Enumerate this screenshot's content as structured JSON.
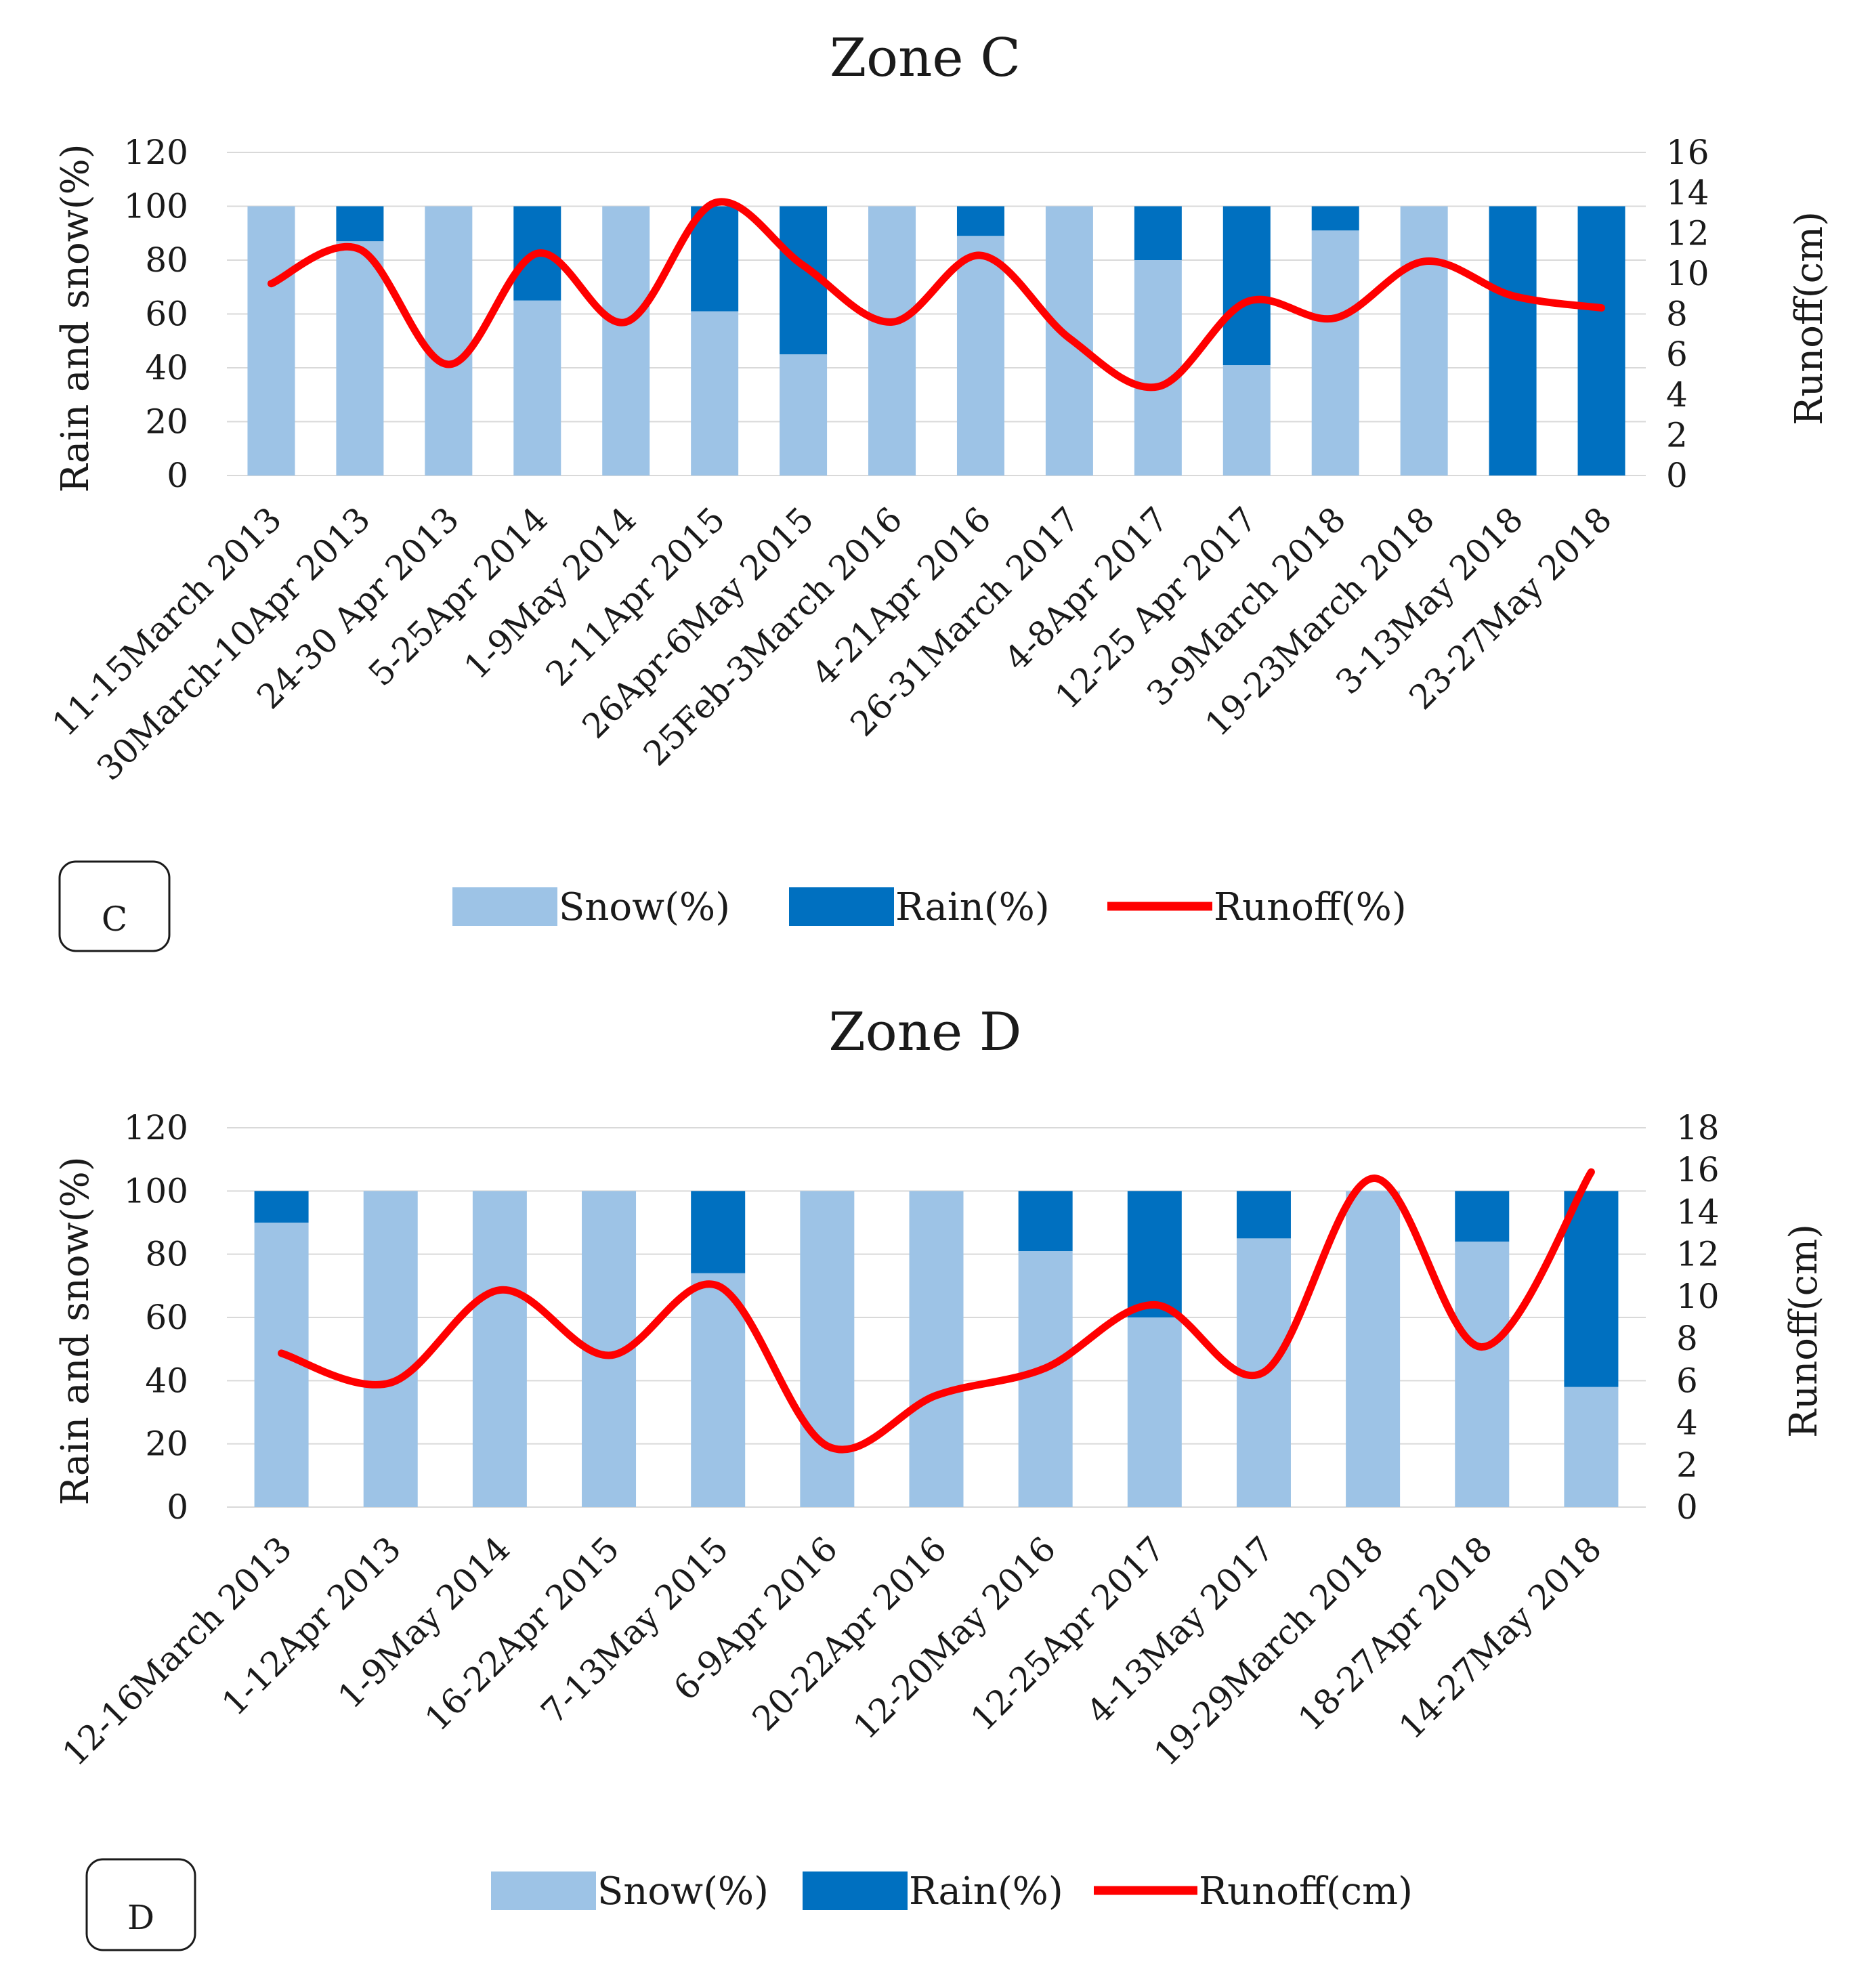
{
  "chart_data": [
    {
      "type": "bar",
      "stacked": true,
      "title": "Zone C",
      "panel_label": "C",
      "ylabel": "Rain and snow(%)",
      "y2label": "Runoff(cm)",
      "ylim": [
        0,
        120
      ],
      "yticks": [
        0,
        20,
        40,
        60,
        80,
        100,
        120
      ],
      "y2lim": [
        0,
        16
      ],
      "y2ticks": [
        0,
        2,
        4,
        6,
        8,
        10,
        12,
        14,
        16
      ],
      "categories": [
        "11-15March 2013",
        "30March-10Apr 2013",
        "24-30 Apr 2013",
        "5-25Apr 2014",
        "1-9May 2014",
        "2-11Apr 2015",
        "26Apr-6May 2015",
        "25Feb-3March 2016",
        "4-21Apr 2016",
        "26-31March 2017",
        "4-8Apr 2017",
        "12-25 Apr 2017",
        "3-9March 2018",
        "19-23March 2018",
        "3-13May 2018",
        "23-27May 2018"
      ],
      "series": [
        {
          "name": "Snow(%)",
          "kind": "bar",
          "axis": "left",
          "color": "#9dc3e6",
          "values": [
            100,
            87,
            100,
            65,
            100,
            61,
            45,
            100,
            89,
            100,
            80,
            41,
            91,
            100,
            0,
            0
          ]
        },
        {
          "name": "Rain(%)",
          "kind": "bar",
          "axis": "left",
          "color": "#0070c0",
          "values": [
            0,
            13,
            0,
            35,
            0,
            39,
            55,
            0,
            11,
            0,
            20,
            59,
            9,
            0,
            100,
            100
          ]
        },
        {
          "name": "Runoff(%)",
          "kind": "line",
          "axis": "right",
          "color": "#ff0000",
          "values": [
            9.5,
            11.2,
            5.5,
            11.0,
            7.6,
            13.5,
            10.4,
            7.6,
            10.9,
            6.8,
            4.4,
            8.6,
            7.8,
            10.6,
            8.9,
            8.3
          ]
        }
      ],
      "legend": [
        "Snow(%)",
        "Rain(%)",
        "Runoff(%)"
      ],
      "legend_position": "bottom"
    },
    {
      "type": "bar",
      "stacked": true,
      "title": "Zone D",
      "panel_label": "D",
      "ylabel": "Rain and snow(%)",
      "y2label": "Runoff(cm)",
      "ylim": [
        0,
        120
      ],
      "yticks": [
        0,
        20,
        40,
        60,
        80,
        100,
        120
      ],
      "y2lim": [
        0,
        18
      ],
      "y2ticks": [
        0,
        2,
        4,
        6,
        8,
        10,
        12,
        14,
        16,
        18
      ],
      "categories": [
        "12-16March 2013",
        "1-12Apr 2013",
        "1-9May 2014",
        "16-22Apr 2015",
        "7-13May 2015",
        "6-9Apr 2016",
        "20-22Apr 2016",
        "12-20May 2016",
        "12-25Apr 2017",
        "4-13May 2017",
        "19-29March 2018",
        "18-27Apr 2018",
        "14-27May 2018"
      ],
      "series": [
        {
          "name": "Snow(%)",
          "kind": "bar",
          "axis": "left",
          "color": "#9dc3e6",
          "values": [
            90,
            100,
            100,
            100,
            74,
            100,
            100,
            81,
            60,
            85,
            100,
            84,
            38
          ]
        },
        {
          "name": "Rain(%)",
          "kind": "bar",
          "axis": "left",
          "color": "#0070c0",
          "values": [
            10,
            0,
            0,
            0,
            26,
            0,
            0,
            19,
            40,
            15,
            0,
            16,
            62
          ]
        },
        {
          "name": "Runoff(cm)",
          "kind": "line",
          "axis": "right",
          "color": "#ff0000",
          "values": [
            7.3,
            5.9,
            10.3,
            7.2,
            10.5,
            2.9,
            5.3,
            6.6,
            9.6,
            6.4,
            15.6,
            7.6,
            15.9
          ]
        }
      ],
      "legend": [
        "Snow(%)",
        "Rain(%)",
        "Runoff(cm)"
      ],
      "legend_position": "bottom"
    }
  ]
}
